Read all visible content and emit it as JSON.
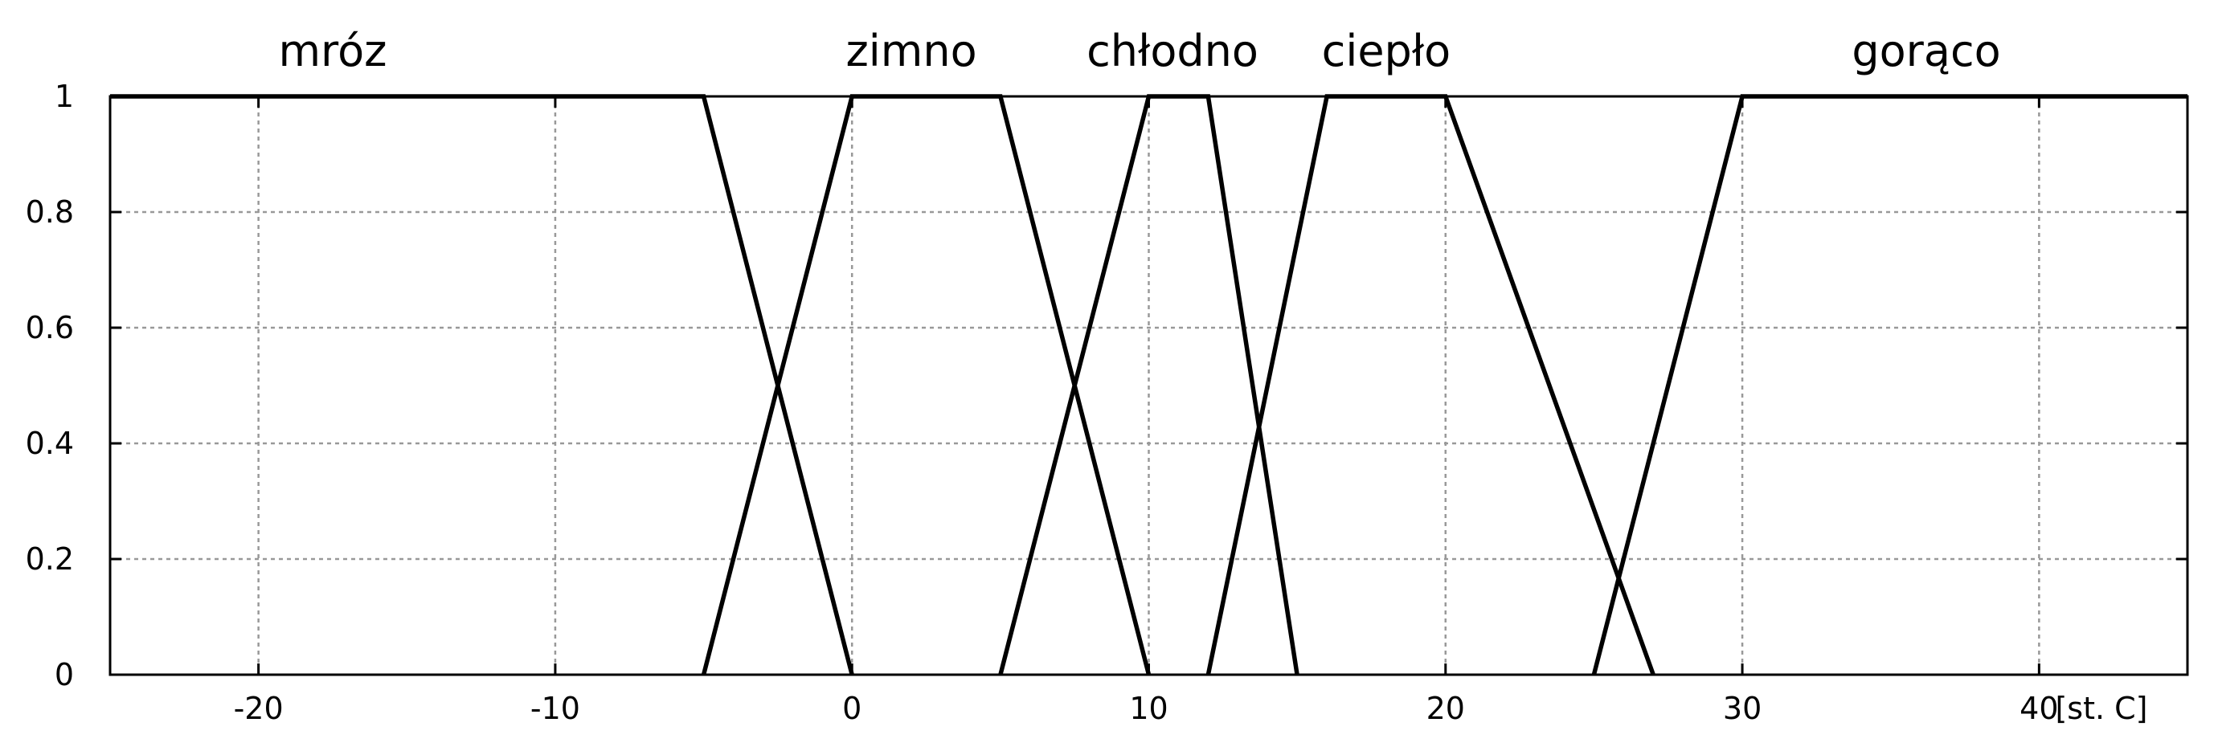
{
  "chart_data": {
    "type": "line",
    "title": "",
    "xlabel": "[st. C]",
    "ylabel": "",
    "xlim": [
      -25,
      45
    ],
    "ylim": [
      0,
      1
    ],
    "x_ticks": [
      -20,
      -10,
      0,
      10,
      20,
      30,
      40
    ],
    "x_tick_labels": [
      "-20",
      "-10",
      "0",
      "10",
      "20",
      "30",
      "40"
    ],
    "y_ticks": [
      0,
      0.2,
      0.4,
      0.6,
      0.8,
      1
    ],
    "y_tick_labels": [
      "0",
      "0.2",
      "0.4",
      "0.6",
      "0.8",
      "1"
    ],
    "grid": true,
    "legend": "none",
    "series": [
      {
        "name": "mróz",
        "label_x": -17.5,
        "points": [
          [
            -25,
            1
          ],
          [
            -5,
            1
          ],
          [
            0,
            0
          ]
        ]
      },
      {
        "name": "zimno",
        "label_x": 2,
        "points": [
          [
            -5,
            0
          ],
          [
            0,
            1
          ],
          [
            5,
            1
          ],
          [
            10,
            0
          ]
        ]
      },
      {
        "name": "chłodno",
        "label_x": 10.8,
        "points": [
          [
            5,
            0
          ],
          [
            10,
            1
          ],
          [
            12,
            1
          ],
          [
            15,
            0
          ]
        ]
      },
      {
        "name": "ciepło",
        "label_x": 18,
        "points": [
          [
            12,
            0
          ],
          [
            16,
            1
          ],
          [
            20,
            1
          ],
          [
            27,
            0
          ]
        ]
      },
      {
        "name": "gorąco",
        "label_x": 36.2,
        "points": [
          [
            25,
            0
          ],
          [
            30,
            1
          ],
          [
            45,
            1
          ]
        ]
      }
    ]
  }
}
